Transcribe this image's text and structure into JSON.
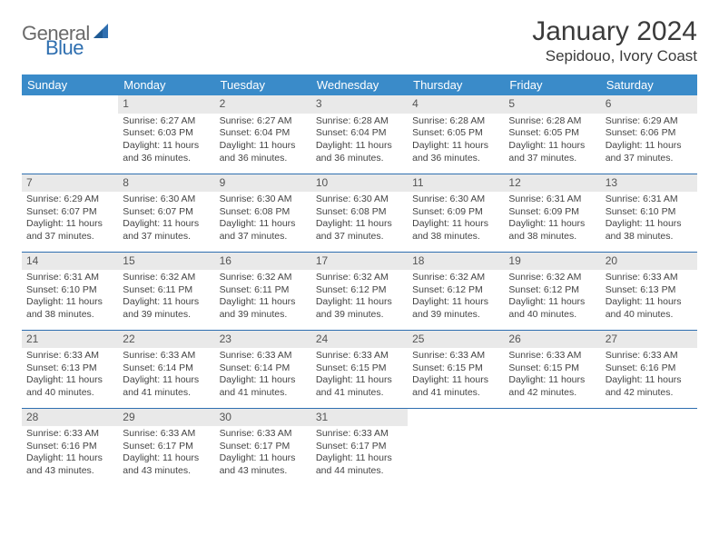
{
  "brand": {
    "word1": "General",
    "word2": "Blue"
  },
  "colors": {
    "header_bg": "#3a8bc9",
    "header_text": "#ffffff",
    "line": "#2f6fb0",
    "daynum_bg": "#e9e9e9",
    "logo_gray": "#6a6a6a",
    "logo_blue": "#2f6fb0",
    "body_text": "#444444"
  },
  "title": "January 2024",
  "location": "Sepidouo, Ivory Coast",
  "weekdays": [
    "Sunday",
    "Monday",
    "Tuesday",
    "Wednesday",
    "Thursday",
    "Friday",
    "Saturday"
  ],
  "weeks": [
    [
      null,
      {
        "n": "1",
        "sr": "Sunrise: 6:27 AM",
        "ss": "Sunset: 6:03 PM",
        "dl1": "Daylight: 11 hours",
        "dl2": "and 36 minutes."
      },
      {
        "n": "2",
        "sr": "Sunrise: 6:27 AM",
        "ss": "Sunset: 6:04 PM",
        "dl1": "Daylight: 11 hours",
        "dl2": "and 36 minutes."
      },
      {
        "n": "3",
        "sr": "Sunrise: 6:28 AM",
        "ss": "Sunset: 6:04 PM",
        "dl1": "Daylight: 11 hours",
        "dl2": "and 36 minutes."
      },
      {
        "n": "4",
        "sr": "Sunrise: 6:28 AM",
        "ss": "Sunset: 6:05 PM",
        "dl1": "Daylight: 11 hours",
        "dl2": "and 36 minutes."
      },
      {
        "n": "5",
        "sr": "Sunrise: 6:28 AM",
        "ss": "Sunset: 6:05 PM",
        "dl1": "Daylight: 11 hours",
        "dl2": "and 37 minutes."
      },
      {
        "n": "6",
        "sr": "Sunrise: 6:29 AM",
        "ss": "Sunset: 6:06 PM",
        "dl1": "Daylight: 11 hours",
        "dl2": "and 37 minutes."
      }
    ],
    [
      {
        "n": "7",
        "sr": "Sunrise: 6:29 AM",
        "ss": "Sunset: 6:07 PM",
        "dl1": "Daylight: 11 hours",
        "dl2": "and 37 minutes."
      },
      {
        "n": "8",
        "sr": "Sunrise: 6:30 AM",
        "ss": "Sunset: 6:07 PM",
        "dl1": "Daylight: 11 hours",
        "dl2": "and 37 minutes."
      },
      {
        "n": "9",
        "sr": "Sunrise: 6:30 AM",
        "ss": "Sunset: 6:08 PM",
        "dl1": "Daylight: 11 hours",
        "dl2": "and 37 minutes."
      },
      {
        "n": "10",
        "sr": "Sunrise: 6:30 AM",
        "ss": "Sunset: 6:08 PM",
        "dl1": "Daylight: 11 hours",
        "dl2": "and 37 minutes."
      },
      {
        "n": "11",
        "sr": "Sunrise: 6:30 AM",
        "ss": "Sunset: 6:09 PM",
        "dl1": "Daylight: 11 hours",
        "dl2": "and 38 minutes."
      },
      {
        "n": "12",
        "sr": "Sunrise: 6:31 AM",
        "ss": "Sunset: 6:09 PM",
        "dl1": "Daylight: 11 hours",
        "dl2": "and 38 minutes."
      },
      {
        "n": "13",
        "sr": "Sunrise: 6:31 AM",
        "ss": "Sunset: 6:10 PM",
        "dl1": "Daylight: 11 hours",
        "dl2": "and 38 minutes."
      }
    ],
    [
      {
        "n": "14",
        "sr": "Sunrise: 6:31 AM",
        "ss": "Sunset: 6:10 PM",
        "dl1": "Daylight: 11 hours",
        "dl2": "and 38 minutes."
      },
      {
        "n": "15",
        "sr": "Sunrise: 6:32 AM",
        "ss": "Sunset: 6:11 PM",
        "dl1": "Daylight: 11 hours",
        "dl2": "and 39 minutes."
      },
      {
        "n": "16",
        "sr": "Sunrise: 6:32 AM",
        "ss": "Sunset: 6:11 PM",
        "dl1": "Daylight: 11 hours",
        "dl2": "and 39 minutes."
      },
      {
        "n": "17",
        "sr": "Sunrise: 6:32 AM",
        "ss": "Sunset: 6:12 PM",
        "dl1": "Daylight: 11 hours",
        "dl2": "and 39 minutes."
      },
      {
        "n": "18",
        "sr": "Sunrise: 6:32 AM",
        "ss": "Sunset: 6:12 PM",
        "dl1": "Daylight: 11 hours",
        "dl2": "and 39 minutes."
      },
      {
        "n": "19",
        "sr": "Sunrise: 6:32 AM",
        "ss": "Sunset: 6:12 PM",
        "dl1": "Daylight: 11 hours",
        "dl2": "and 40 minutes."
      },
      {
        "n": "20",
        "sr": "Sunrise: 6:33 AM",
        "ss": "Sunset: 6:13 PM",
        "dl1": "Daylight: 11 hours",
        "dl2": "and 40 minutes."
      }
    ],
    [
      {
        "n": "21",
        "sr": "Sunrise: 6:33 AM",
        "ss": "Sunset: 6:13 PM",
        "dl1": "Daylight: 11 hours",
        "dl2": "and 40 minutes."
      },
      {
        "n": "22",
        "sr": "Sunrise: 6:33 AM",
        "ss": "Sunset: 6:14 PM",
        "dl1": "Daylight: 11 hours",
        "dl2": "and 41 minutes."
      },
      {
        "n": "23",
        "sr": "Sunrise: 6:33 AM",
        "ss": "Sunset: 6:14 PM",
        "dl1": "Daylight: 11 hours",
        "dl2": "and 41 minutes."
      },
      {
        "n": "24",
        "sr": "Sunrise: 6:33 AM",
        "ss": "Sunset: 6:15 PM",
        "dl1": "Daylight: 11 hours",
        "dl2": "and 41 minutes."
      },
      {
        "n": "25",
        "sr": "Sunrise: 6:33 AM",
        "ss": "Sunset: 6:15 PM",
        "dl1": "Daylight: 11 hours",
        "dl2": "and 41 minutes."
      },
      {
        "n": "26",
        "sr": "Sunrise: 6:33 AM",
        "ss": "Sunset: 6:15 PM",
        "dl1": "Daylight: 11 hours",
        "dl2": "and 42 minutes."
      },
      {
        "n": "27",
        "sr": "Sunrise: 6:33 AM",
        "ss": "Sunset: 6:16 PM",
        "dl1": "Daylight: 11 hours",
        "dl2": "and 42 minutes."
      }
    ],
    [
      {
        "n": "28",
        "sr": "Sunrise: 6:33 AM",
        "ss": "Sunset: 6:16 PM",
        "dl1": "Daylight: 11 hours",
        "dl2": "and 43 minutes."
      },
      {
        "n": "29",
        "sr": "Sunrise: 6:33 AM",
        "ss": "Sunset: 6:17 PM",
        "dl1": "Daylight: 11 hours",
        "dl2": "and 43 minutes."
      },
      {
        "n": "30",
        "sr": "Sunrise: 6:33 AM",
        "ss": "Sunset: 6:17 PM",
        "dl1": "Daylight: 11 hours",
        "dl2": "and 43 minutes."
      },
      {
        "n": "31",
        "sr": "Sunrise: 6:33 AM",
        "ss": "Sunset: 6:17 PM",
        "dl1": "Daylight: 11 hours",
        "dl2": "and 44 minutes."
      },
      null,
      null,
      null
    ]
  ]
}
